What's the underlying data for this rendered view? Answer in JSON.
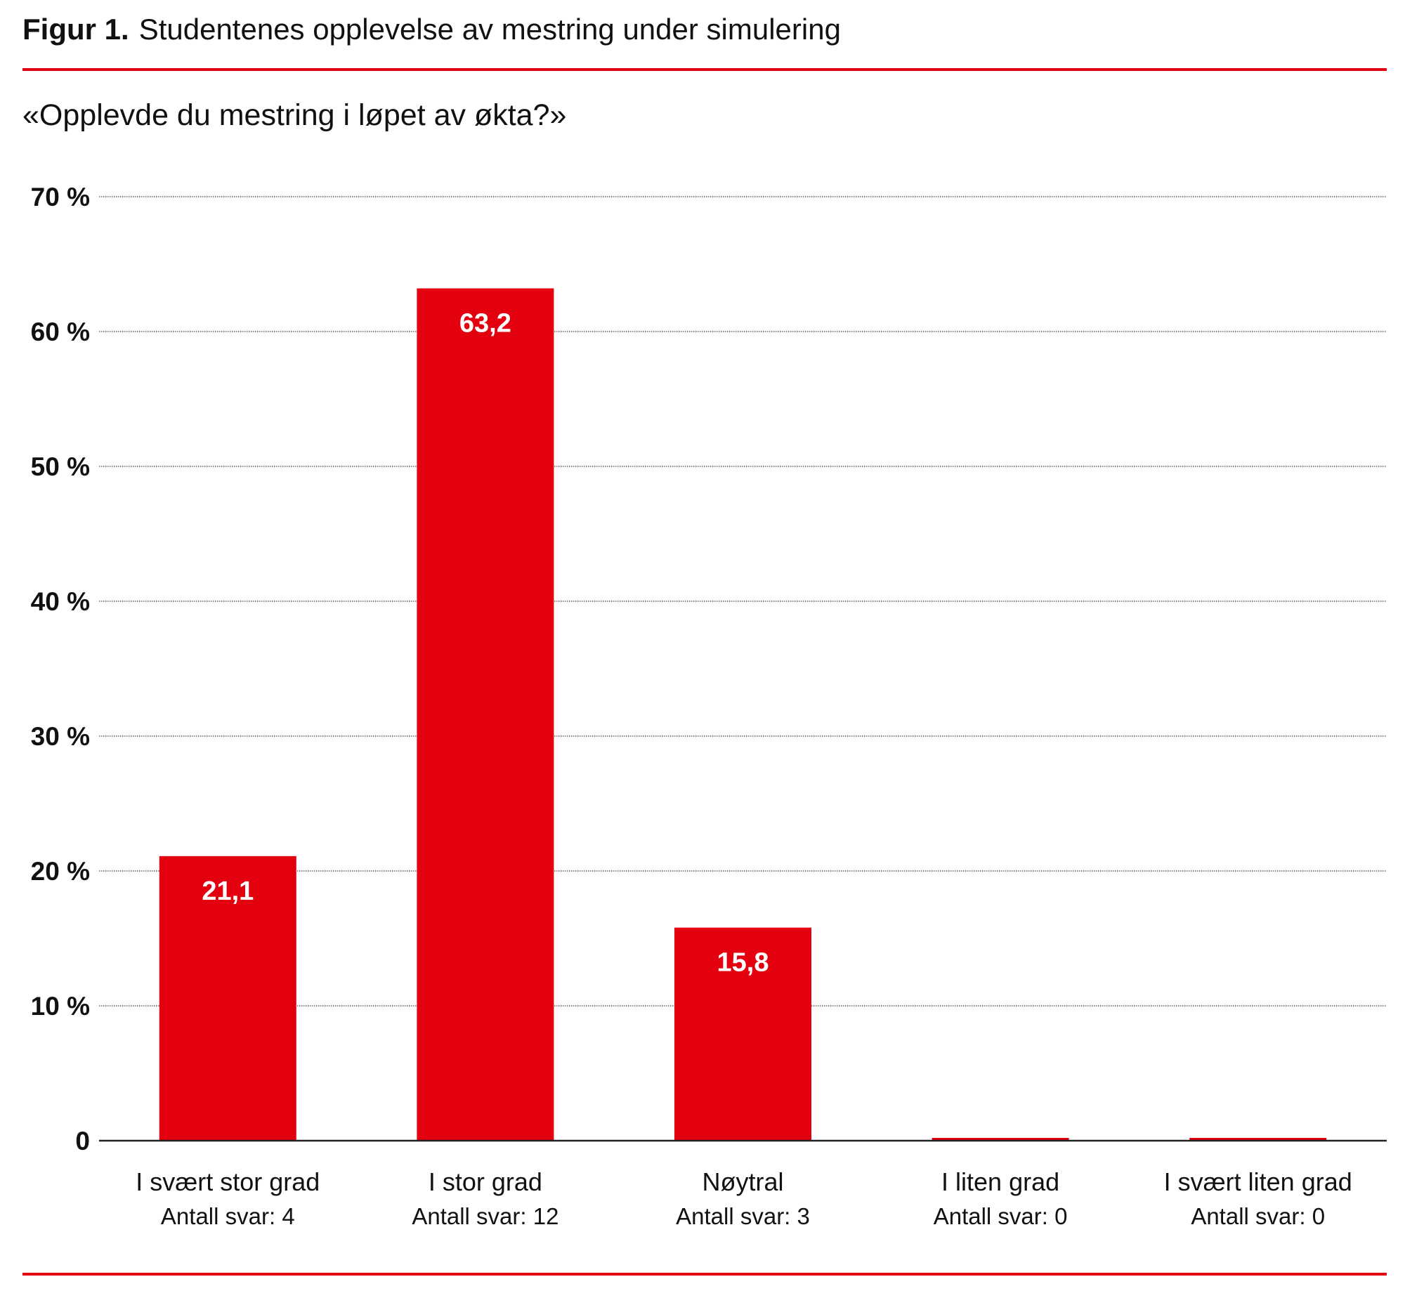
{
  "figure_label": "Figur 1.",
  "title": "Studentenes opplevelse av mestring under simulering",
  "subtitle": "«Opplevde du mestring i løpet av økta?»",
  "colors": {
    "bar": "#e3000f",
    "rule": "#e3000f",
    "label": "#ffffff"
  },
  "chart_data": {
    "type": "bar",
    "title": "Studentenes opplevelse av mestring under simulering",
    "subtitle": "«Opplevde du mestring i løpet av økta?»",
    "categories": [
      "I svært stor grad",
      "I stor grad",
      "Nøytral",
      "I liten grad",
      "I svært liten grad"
    ],
    "counts": [
      "Antall svar: 4",
      "Antall svar: 12",
      "Antall svar: 3",
      "Antall svar: 0",
      "Antall svar: 0"
    ],
    "values": [
      21.1,
      63.2,
      15.8,
      0,
      0
    ],
    "data_labels": [
      "21,1",
      "63,2",
      "15,8",
      "",
      ""
    ],
    "ylim": [
      0,
      70
    ],
    "yticks": [
      0,
      10,
      20,
      30,
      40,
      50,
      60,
      70
    ],
    "ytick_labels": [
      "0",
      "10 %",
      "20 %",
      "30 %",
      "40 %",
      "50 %",
      "60 %",
      "70 %"
    ],
    "xlabel": "",
    "ylabel": "",
    "grid": "horizontal dotted",
    "legend": "none"
  }
}
